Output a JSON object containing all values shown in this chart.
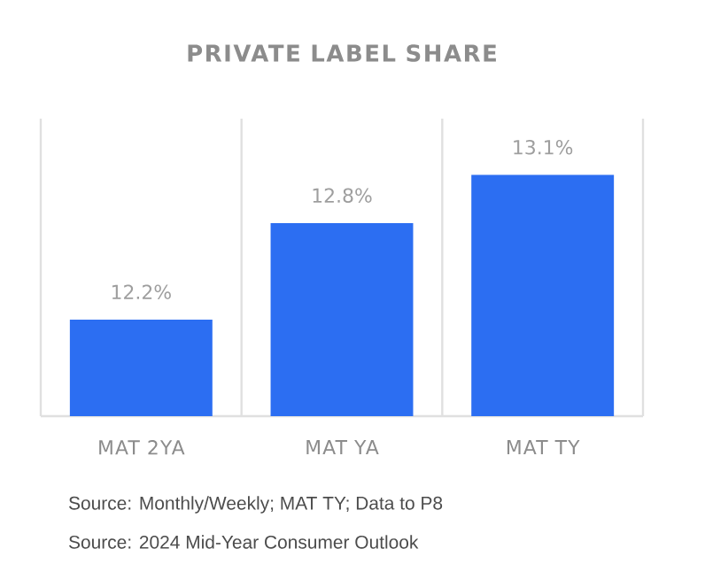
{
  "chart_data": {
    "type": "bar",
    "title": "PRIVATE LABEL SHARE",
    "categories": [
      "MAT 2YA",
      "MAT YA",
      "MAT TY"
    ],
    "values": [
      12.2,
      12.8,
      13.1
    ],
    "value_labels": [
      "12.2%",
      "12.8%",
      "13.1%"
    ],
    "color": "#2c6ef2",
    "ylim": [
      11.6,
      13.45
    ],
    "tick_labels": "x",
    "grid": "x",
    "annotations": [
      "Source: Monthly/Weekly; MAT TY; Data to P8",
      "Source: 2024 Mid-Year Consumer Outlook"
    ]
  }
}
